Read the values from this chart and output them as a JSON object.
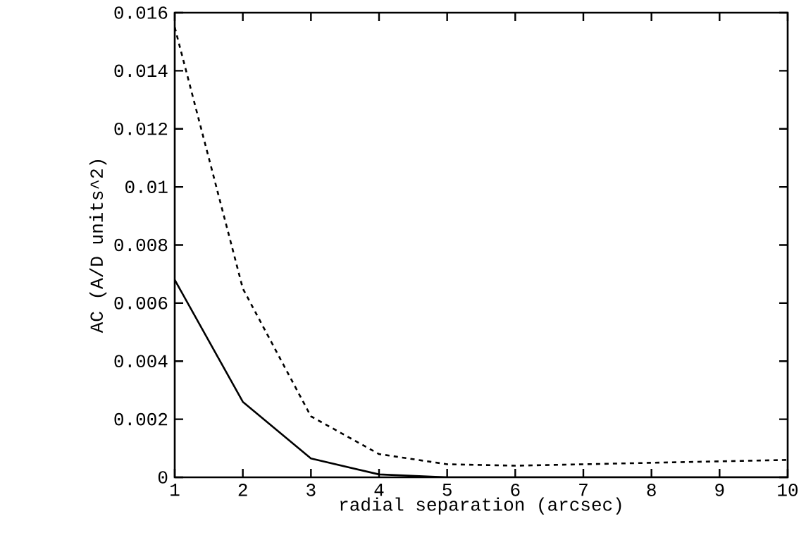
{
  "chart_data": {
    "type": "line",
    "xlabel": "radial separation (arcsec)",
    "ylabel": "AC (A/D units^2)",
    "x": [
      1,
      2,
      3,
      4,
      5,
      6,
      7,
      8,
      9,
      10
    ],
    "series": [
      {
        "color": "#000000",
        "line_style": "dashed",
        "values": [
          0.0155,
          0.0065,
          0.0021,
          0.0008,
          0.00045,
          0.0004,
          0.00045,
          0.0005,
          0.00055,
          0.0006
        ]
      },
      {
        "color": "#000000",
        "line_style": "solid",
        "values": [
          0.0068,
          0.0026,
          0.00065,
          0.0001,
          0,
          0,
          0,
          0,
          0,
          0
        ]
      }
    ],
    "xlim": [
      1,
      10
    ],
    "ylim": [
      0,
      0.016
    ],
    "xticks": [
      1,
      2,
      3,
      4,
      5,
      6,
      7,
      8,
      9,
      10
    ],
    "yticks": [
      0,
      0.002,
      0.004,
      0.006,
      0.008,
      0.01,
      0.012,
      0.014,
      0.016
    ],
    "marker": "none"
  }
}
